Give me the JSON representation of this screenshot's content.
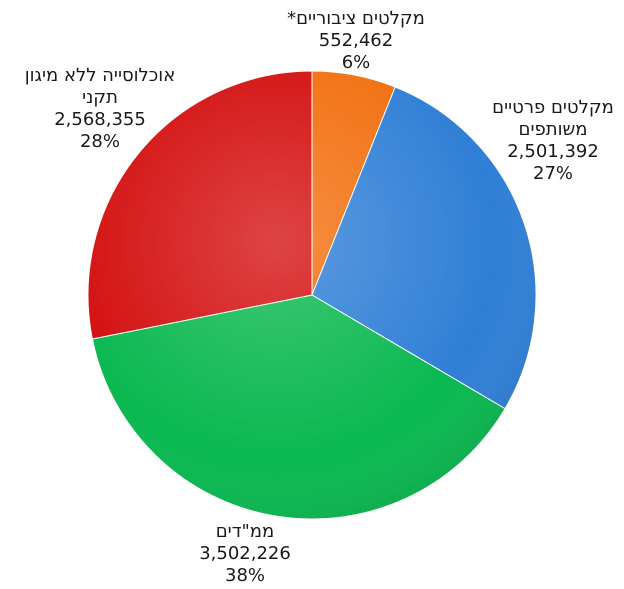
{
  "chart_data": {
    "type": "pie",
    "slices": [
      {
        "label_lines": [
          "מקלטים ציבוריים*"
        ],
        "value": 552462,
        "value_text": "552,462",
        "percent_text": "6%",
        "color": "#f26f0f"
      },
      {
        "label_lines": [
          "מקלטים פרטיים",
          "משותפים"
        ],
        "value": 2501392,
        "value_text": "2,501,392",
        "percent_text": "27%",
        "color": "#2f7fd6"
      },
      {
        "label_lines": [
          "ממ\"דים"
        ],
        "value": 3502226,
        "value_text": "3,502,226",
        "percent_text": "38%",
        "color": "#0ab850"
      },
      {
        "label_lines": [
          "אוכלוסייה ללא מיגון",
          "תקני"
        ],
        "value": 2568355,
        "value_text": "2,568,355",
        "percent_text": "28%",
        "color": "#d40f0f"
      }
    ]
  }
}
